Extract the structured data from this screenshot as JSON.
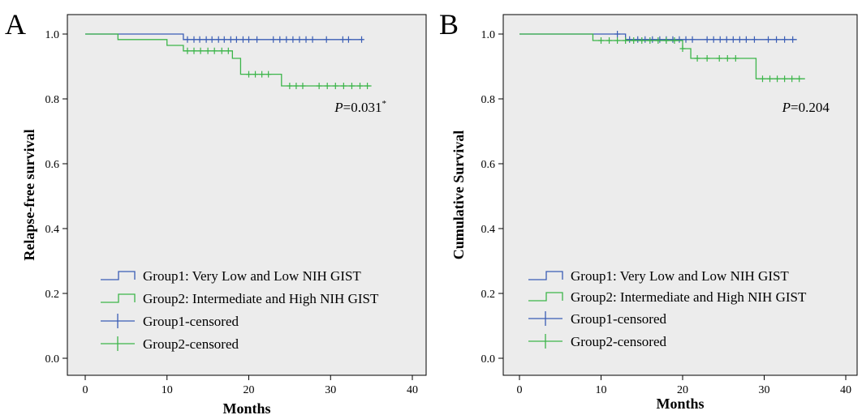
{
  "chart_data": [
    {
      "type": "line",
      "panel_label": "A",
      "xlabel": "Months",
      "ylabel": "Relapse-free  survival",
      "xlim": [
        0,
        40
      ],
      "ylim": [
        0,
        1
      ],
      "xticks": [
        0,
        10,
        20,
        30,
        40
      ],
      "yticks": [
        "0.0",
        "0.2",
        "0.4",
        "0.6",
        "0.8",
        "1.0"
      ],
      "background": "#ececec",
      "grid": false,
      "legend_position": "lower-left",
      "pvalue": {
        "label": "P",
        "text": "=0.031",
        "superscript": "*",
        "x": 30.5,
        "y": 0.775
      },
      "legend": [
        {
          "label": "Group1:  Very Low and Low NIH GIST",
          "kind": "step",
          "color": "#3a5db5"
        },
        {
          "label": "Group2: Intermediate and High NIH GIST",
          "kind": "step",
          "color": "#3cb54a"
        },
        {
          "label": "Group1-censored",
          "kind": "cross",
          "color": "#3a5db5"
        },
        {
          "label": "Group2-censored",
          "kind": "cross",
          "color": "#3cb54a"
        }
      ],
      "series": [
        {
          "color": "#3a5db5",
          "steps": [
            [
              0,
              1.0
            ],
            [
              12,
              0.983
            ]
          ],
          "end": 34,
          "censored": [
            12.5,
            13.3,
            14,
            14.8,
            15.5,
            16.3,
            17,
            17.8,
            18.5,
            19.3,
            20,
            21,
            23,
            23.8,
            24.6,
            25.4,
            26.2,
            27,
            27.8,
            29.5,
            31.5,
            32.2,
            33.8
          ]
        },
        {
          "color": "#3cb54a",
          "steps": [
            [
              0,
              1.0
            ],
            [
              4,
              0.983
            ],
            [
              10,
              0.965
            ],
            [
              12,
              0.948
            ],
            [
              18,
              0.925
            ],
            [
              19,
              0.876
            ],
            [
              24,
              0.84
            ]
          ],
          "end": 35,
          "censored": [
            12.5,
            13.3,
            14.1,
            15,
            15.8,
            16.7,
            17.5,
            20,
            20.8,
            21.6,
            22.4,
            25,
            25.8,
            26.6,
            28.6,
            29.6,
            30.6,
            31.6,
            32.6,
            33.6,
            34.5
          ]
        }
      ]
    },
    {
      "type": "line",
      "panel_label": "B",
      "xlabel": "Months",
      "ylabel": "Cumulative  Survival",
      "xlim": [
        0,
        40
      ],
      "ylim": [
        0,
        1
      ],
      "xticks": [
        0,
        10,
        20,
        30,
        40
      ],
      "yticks": [
        "0.0",
        "0.2",
        "0.4",
        "0.6",
        "0.8",
        "1.0"
      ],
      "background": "#ececec",
      "grid": false,
      "legend_position": "lower-left",
      "pvalue": {
        "label": "P",
        "text": "=0.204",
        "superscript": "",
        "x": 32.2,
        "y": 0.775
      },
      "legend": [
        {
          "label": "Group1:  Very Low and Low NIH GIST",
          "kind": "step",
          "color": "#3a5db5"
        },
        {
          "label": "Group2: Intermediate and High NIH GIST",
          "kind": "step",
          "color": "#3cb54a"
        },
        {
          "label": "Group1-censored",
          "kind": "cross",
          "color": "#3a5db5"
        },
        {
          "label": "Group2-censored",
          "kind": "cross",
          "color": "#3cb54a"
        }
      ],
      "series": [
        {
          "color": "#3a5db5",
          "steps": [
            [
              0,
              1.0
            ],
            [
              13,
              0.983
            ]
          ],
          "end": 34,
          "censored": [
            12,
            13.5,
            14.5,
            15.4,
            16.3,
            17.2,
            18,
            18.8,
            19.6,
            20.4,
            21.2,
            23,
            23.8,
            24.6,
            25.4,
            26.2,
            27,
            27.8,
            28.8,
            30.5,
            31.5,
            32.5,
            33.5
          ]
        },
        {
          "color": "#3cb54a",
          "steps": [
            [
              0,
              1.0
            ],
            [
              9,
              0.98
            ],
            [
              20,
              0.955
            ],
            [
              21,
              0.925
            ],
            [
              29,
              0.862
            ]
          ],
          "end": 35,
          "censored": [
            10,
            11,
            12,
            13,
            14,
            15,
            16,
            17,
            18,
            19,
            20,
            21.8,
            23,
            24.5,
            25.5,
            26.5,
            29.8,
            30.7,
            31.6,
            32.5,
            33.4,
            34.3
          ]
        }
      ]
    }
  ]
}
